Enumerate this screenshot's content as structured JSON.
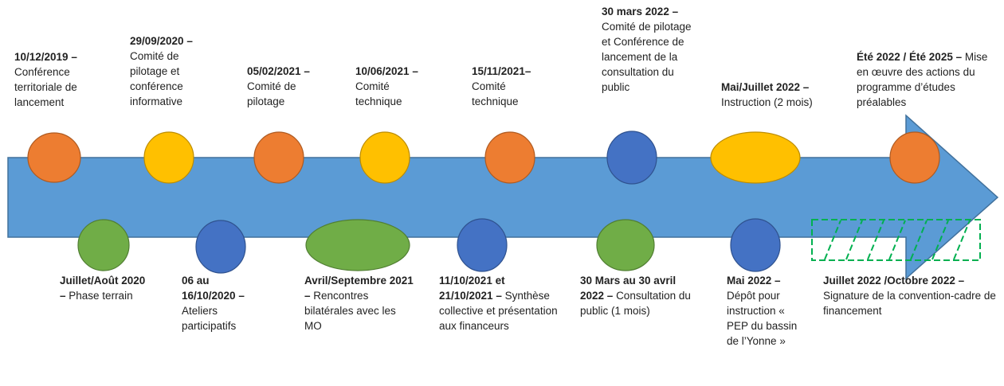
{
  "top_events": [
    {
      "date": "10/12/2019 –",
      "text": "Conférence territoriale de lancement"
    },
    {
      "date": "29/09/2020 –",
      "text": "Comité de pilotage et conférence informative"
    },
    {
      "date": "05/02/2021 –",
      "text": "Comité de pilotage"
    },
    {
      "date": "10/06/2021 –",
      "text": "Comité technique"
    },
    {
      "date": "15/11/2021–",
      "text": "Comité technique"
    },
    {
      "date": "30 mars 2022 –",
      "text": "Comité de pilotage et Conférence de lancement de la consultation du public"
    },
    {
      "date": "Mai/Juillet 2022 –",
      "text": "Instruction (2 mois)"
    },
    {
      "date": "Été 2022 / Été 2025 –",
      "text": "Mise en œuvre des actions du programme d’études préalables"
    }
  ],
  "bottom_events": [
    {
      "date": "Juillet/Août 2020 –",
      "text": "Phase terrain"
    },
    {
      "date": "06 au 16/10/2020 –",
      "text": "Ateliers participatifs"
    },
    {
      "date": "Avril/Septembre 2021 –",
      "text": "Rencontres bilatérales avec les MO"
    },
    {
      "date": "11/10/2021 et 21/10/2021 –",
      "text": "Synthèse collective et présentation aux financeurs"
    },
    {
      "date": "30 Mars au 30 avril 2022 –",
      "text": "Consultation du public (1 mois)"
    },
    {
      "date": "Mai 2022 –",
      "text": "Dépôt pour instruction « PEP du bassin de l’Yonne »"
    },
    {
      "date": "Juillet 2022 /Octobre 2022 –",
      "text": "Signature de la convention-cadre de financement"
    }
  ]
}
